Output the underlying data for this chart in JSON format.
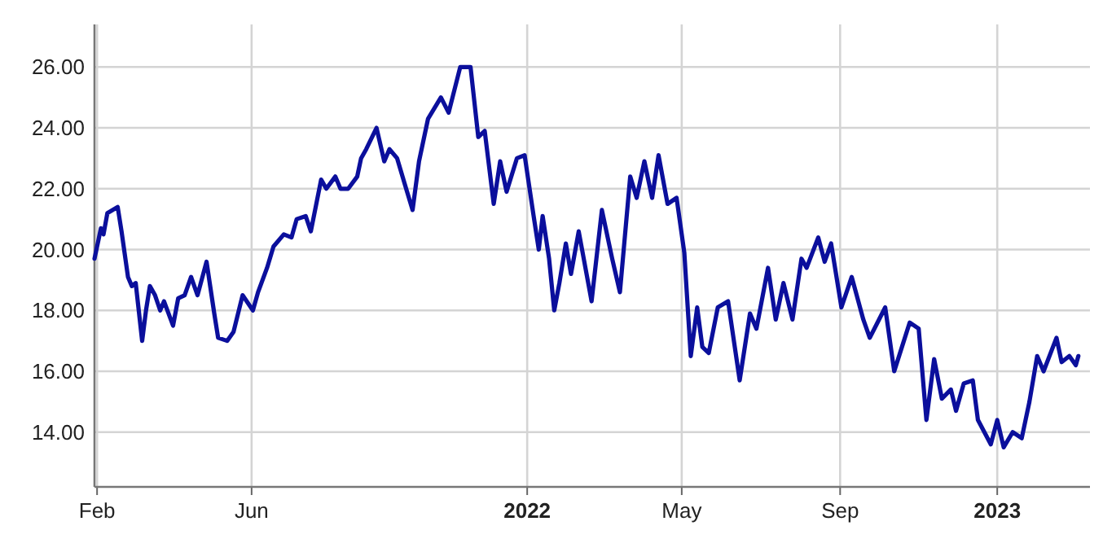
{
  "chart_data": {
    "type": "line",
    "xlim": [
      "2021-01-30",
      "2023-03-14"
    ],
    "ylim": [
      12.2,
      27.4
    ],
    "xticks": [
      {
        "value": "2021-02-01",
        "label": "Feb"
      },
      {
        "value": "2021-06-01",
        "label": "Jun"
      },
      {
        "value": "2022-01-01",
        "label": "2022"
      },
      {
        "value": "2022-05-01",
        "label": "May"
      },
      {
        "value": "2022-09-01",
        "label": "Sep"
      },
      {
        "value": "2023-01-01",
        "label": "2023"
      }
    ],
    "yticks": [
      {
        "value": 14,
        "label": "14.00"
      },
      {
        "value": 16,
        "label": "16.00"
      },
      {
        "value": 18,
        "label": "18.00"
      },
      {
        "value": 20,
        "label": "20.00"
      },
      {
        "value": 22,
        "label": "22.00"
      },
      {
        "value": 24,
        "label": "24.00"
      },
      {
        "value": 26,
        "label": "26.00"
      }
    ],
    "grid": true,
    "marker": "none",
    "line_style": "solid",
    "series": [
      {
        "color": "#0b0f9c",
        "x": [
          "2021-01-30",
          "2021-02-04",
          "2021-02-06",
          "2021-02-09",
          "2021-02-13",
          "2021-02-17",
          "2021-02-20",
          "2021-02-25",
          "2021-02-28",
          "2021-03-03",
          "2021-03-08",
          "2021-03-11",
          "2021-03-14",
          "2021-03-18",
          "2021-03-22",
          "2021-03-25",
          "2021-04-01",
          "2021-04-05",
          "2021-04-10",
          "2021-04-15",
          "2021-04-20",
          "2021-04-27",
          "2021-05-03",
          "2021-05-06",
          "2021-05-13",
          "2021-05-18",
          "2021-05-25",
          "2021-06-02",
          "2021-06-06",
          "2021-06-13",
          "2021-06-18",
          "2021-06-26",
          "2021-07-02",
          "2021-07-06",
          "2021-07-13",
          "2021-07-17",
          "2021-07-25",
          "2021-07-29",
          "2021-08-05",
          "2021-08-09",
          "2021-08-15",
          "2021-08-22",
          "2021-08-25",
          "2021-08-29",
          "2021-09-06",
          "2021-09-12",
          "2021-09-16",
          "2021-09-22",
          "2021-09-29",
          "2021-10-04",
          "2021-10-09",
          "2021-10-16",
          "2021-10-26",
          "2021-11-01",
          "2021-11-10",
          "2021-11-18",
          "2021-11-24",
          "2021-11-29",
          "2021-12-06",
          "2021-12-11",
          "2021-12-16",
          "2021-12-24",
          "2021-12-30",
          "2022-01-06",
          "2022-01-10",
          "2022-01-13",
          "2022-01-18",
          "2022-01-22",
          "2022-01-26",
          "2022-01-31",
          "2022-02-04",
          "2022-02-10",
          "2022-02-20",
          "2022-02-28",
          "2022-03-08",
          "2022-03-14",
          "2022-03-22",
          "2022-03-27",
          "2022-04-02",
          "2022-04-08",
          "2022-04-13",
          "2022-04-20",
          "2022-04-27",
          "2022-05-03",
          "2022-05-08",
          "2022-05-13",
          "2022-05-17",
          "2022-05-22",
          "2022-05-29",
          "2022-06-06",
          "2022-06-15",
          "2022-06-23",
          "2022-06-28",
          "2022-07-07",
          "2022-07-13",
          "2022-07-19",
          "2022-07-26",
          "2022-08-02",
          "2022-08-06",
          "2022-08-15",
          "2022-08-20",
          "2022-08-25",
          "2022-09-02",
          "2022-09-10",
          "2022-09-19",
          "2022-09-24",
          "2022-09-30",
          "2022-10-06",
          "2022-10-13",
          "2022-10-19",
          "2022-10-25",
          "2022-11-01",
          "2022-11-07",
          "2022-11-13",
          "2022-11-19",
          "2022-11-26",
          "2022-11-30",
          "2022-12-06",
          "2022-12-13",
          "2022-12-17",
          "2022-12-27",
          "2023-01-01",
          "2023-01-06",
          "2023-01-13",
          "2023-01-20",
          "2023-01-26",
          "2023-02-01",
          "2023-02-06",
          "2023-02-16",
          "2023-02-20",
          "2023-02-26",
          "2023-03-03",
          "2023-03-05"
        ],
        "values": [
          19.7,
          20.7,
          20.5,
          21.2,
          21.3,
          21.4,
          20.6,
          19.1,
          18.8,
          18.9,
          17.0,
          18.0,
          18.8,
          18.5,
          18.0,
          18.3,
          17.5,
          18.4,
          18.5,
          19.1,
          18.5,
          19.6,
          17.9,
          17.1,
          17.0,
          17.3,
          18.5,
          18.0,
          18.6,
          19.4,
          20.1,
          20.5,
          20.4,
          21.0,
          21.1,
          20.6,
          22.3,
          22.0,
          22.4,
          22.0,
          22.0,
          22.4,
          23.0,
          23.3,
          24.0,
          22.9,
          23.3,
          23.0,
          22.0,
          21.3,
          22.9,
          24.3,
          25.0,
          24.5,
          26.0,
          26.0,
          23.7,
          23.9,
          21.5,
          22.9,
          21.9,
          23.0,
          23.1,
          21.1,
          20.0,
          21.1,
          19.7,
          18.0,
          18.9,
          20.2,
          19.2,
          20.6,
          18.3,
          21.3,
          19.7,
          18.6,
          22.4,
          21.7,
          22.9,
          21.7,
          23.1,
          21.5,
          21.7,
          19.9,
          16.5,
          18.1,
          16.8,
          16.6,
          18.1,
          18.3,
          15.7,
          17.9,
          17.4,
          19.4,
          17.7,
          18.9,
          17.7,
          19.7,
          19.4,
          20.4,
          19.6,
          20.2,
          18.1,
          19.1,
          17.7,
          17.1,
          17.6,
          18.1,
          16.0,
          16.8,
          17.6,
          17.4,
          14.4,
          16.4,
          15.1,
          15.4,
          14.7,
          15.6,
          15.7,
          14.4,
          13.6,
          14.4,
          13.5,
          14.0,
          13.8,
          15.0,
          16.5,
          16.0,
          17.1,
          16.3,
          16.5,
          16.2,
          16.5
        ]
      }
    ]
  }
}
